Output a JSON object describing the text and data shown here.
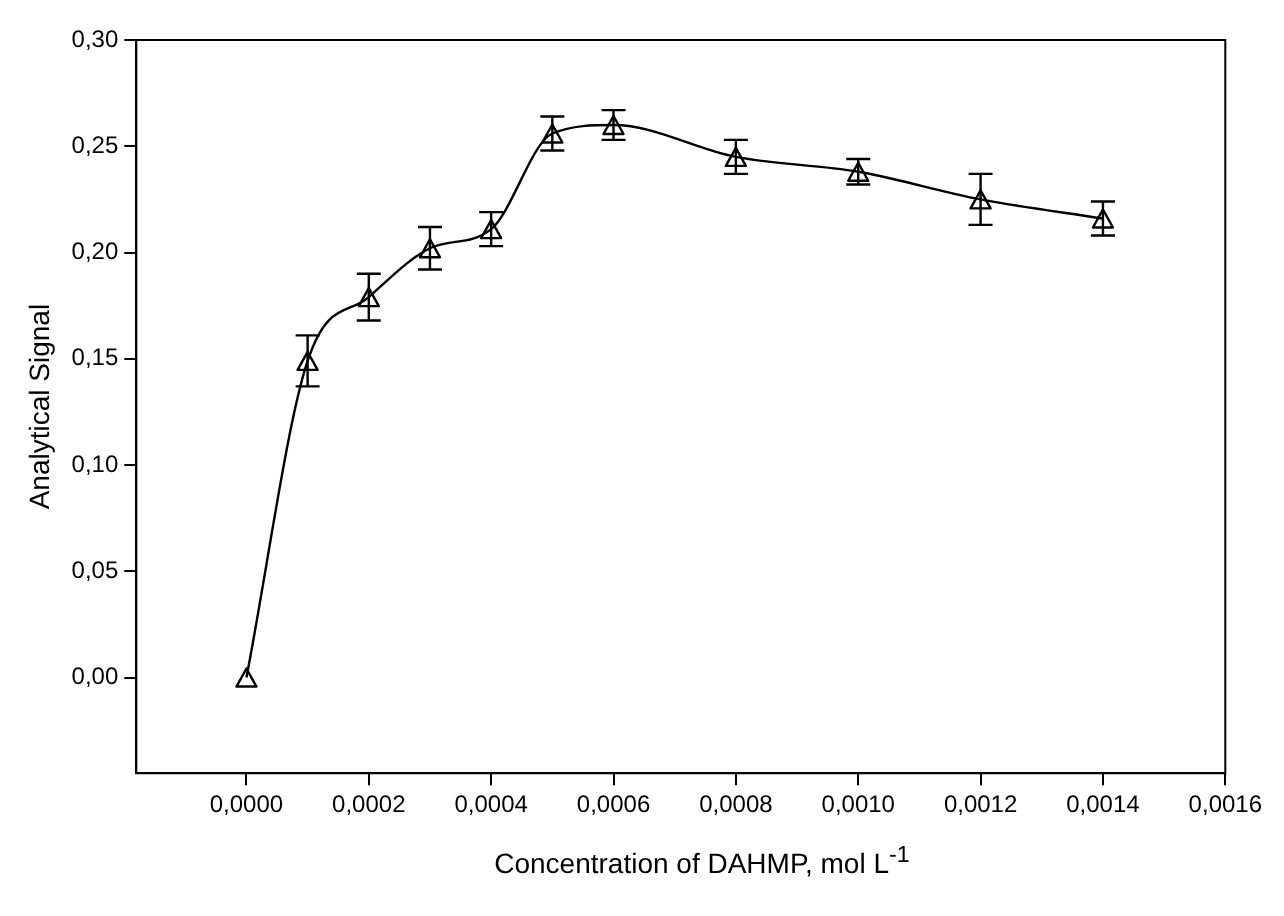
{
  "chart_data": {
    "type": "line",
    "xlabel": "Concentration of DAHMP, mol L$^{-1}$",
    "ylabel": "Analytical Signal",
    "x": [
      0,
      0.0001,
      0.0002,
      0.0003,
      0.0004,
      0.0005,
      0.0006,
      0.0008,
      0.001,
      0.0012,
      0.0014
    ],
    "series": [
      {
        "color": "#000000",
        "values": [
          0,
          0.149,
          0.179,
          0.202,
          0.211,
          0.256,
          0.26,
          0.245,
          0.238,
          0.225,
          0.216
        ],
        "errors": [
          null,
          0.012,
          0.011,
          0.01,
          0.008,
          0.008,
          0.007,
          0.008,
          0.006,
          0.012,
          0.008
        ]
      }
    ],
    "xlim": [
      -0.00018,
      0.0016
    ],
    "ylim": [
      -0.045,
      0.3
    ],
    "xticks": [
      {
        "value": 0,
        "label": "0,0000"
      },
      {
        "value": 0.0002,
        "label": "0,0002"
      },
      {
        "value": 0.0004,
        "label": "0,0004"
      },
      {
        "value": 0.0006,
        "label": "0,0006"
      },
      {
        "value": 0.0008,
        "label": "0,0008"
      },
      {
        "value": 0.001,
        "label": "0,0010"
      },
      {
        "value": 0.0012,
        "label": "0,0012"
      },
      {
        "value": 0.0014,
        "label": "0,0014"
      },
      {
        "value": 0.0016,
        "label": "0,0016"
      }
    ],
    "yticks": [
      {
        "value": 0,
        "label": "0,00"
      },
      {
        "value": 0.05,
        "label": "0,05"
      },
      {
        "value": 0.1,
        "label": "0,10"
      },
      {
        "value": 0.15,
        "label": "0,15"
      },
      {
        "value": 0.2,
        "label": "0,20"
      },
      {
        "value": 0.25,
        "label": "0,25"
      },
      {
        "value": 0.3,
        "label": "0,30"
      }
    ],
    "grid": false,
    "legend": false,
    "marker": "triangle",
    "line_style": "solid"
  }
}
